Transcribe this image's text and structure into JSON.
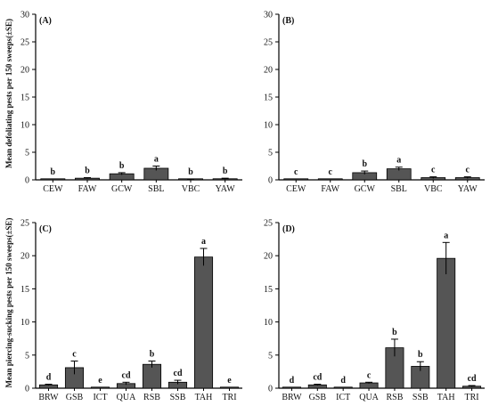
{
  "ylabel_top": "Mean defoliating pests per 150 sweeps(±SE)",
  "ylabel_bottom": "Mean piercing-sucking pests per 150 sweeps(±SE)",
  "chart_data": [
    {
      "panel": "(A)",
      "type": "bar",
      "categories": [
        "CEW",
        "FAW",
        "GCW",
        "SBL",
        "VBC",
        "YAW"
      ],
      "values": [
        0.0,
        0.3,
        1.1,
        2.1,
        0.1,
        0.2
      ],
      "errors": [
        0.0,
        0.1,
        0.2,
        0.4,
        0.05,
        0.1
      ],
      "letters": [
        "b",
        "b",
        "b",
        "a",
        "b",
        "b"
      ],
      "ylim": [
        0,
        30
      ],
      "yticks": [
        0,
        5,
        10,
        15,
        20,
        25,
        30
      ],
      "bar_color": "#555555"
    },
    {
      "panel": "(B)",
      "type": "bar",
      "categories": [
        "CEW",
        "FAW",
        "GCW",
        "SBL",
        "VBC",
        "YAW"
      ],
      "values": [
        0.0,
        0.0,
        1.3,
        2.0,
        0.4,
        0.4
      ],
      "errors": [
        0.0,
        0.0,
        0.3,
        0.3,
        0.15,
        0.15
      ],
      "letters": [
        "c",
        "c",
        "b",
        "a",
        "c",
        "c"
      ],
      "ylim": [
        0,
        30
      ],
      "yticks": [
        0,
        5,
        10,
        15,
        20,
        25,
        30
      ],
      "bar_color": "#555555"
    },
    {
      "panel": "(C)",
      "type": "bar",
      "categories": [
        "BRW",
        "GSB",
        "ICT",
        "QUA",
        "RSB",
        "SSB",
        "TAH",
        "TRI"
      ],
      "values": [
        0.5,
        3.1,
        0.0,
        0.7,
        3.6,
        0.9,
        19.8,
        0.0
      ],
      "errors": [
        0.1,
        1.0,
        0.0,
        0.2,
        0.5,
        0.3,
        1.3,
        0.0
      ],
      "letters": [
        "d",
        "c",
        "e",
        "cd",
        "b",
        "cd",
        "a",
        "e"
      ],
      "ylim": [
        0,
        25
      ],
      "yticks": [
        0,
        5,
        10,
        15,
        20,
        25
      ],
      "bar_color": "#555555"
    },
    {
      "panel": "(D)",
      "type": "bar",
      "categories": [
        "BRW",
        "GSB",
        "ICT",
        "QUA",
        "RSB",
        "SSB",
        "TAH",
        "TRI"
      ],
      "values": [
        0.0,
        0.5,
        0.0,
        0.8,
        6.1,
        3.3,
        19.6,
        0.3
      ],
      "errors": [
        0.0,
        0.1,
        0.0,
        0.1,
        1.3,
        0.7,
        2.4,
        0.1
      ],
      "letters": [
        "d",
        "cd",
        "d",
        "c",
        "b",
        "b",
        "a",
        "cd"
      ],
      "ylim": [
        0,
        25
      ],
      "yticks": [
        0,
        5,
        10,
        15,
        20,
        25
      ],
      "bar_color": "#555555"
    }
  ]
}
